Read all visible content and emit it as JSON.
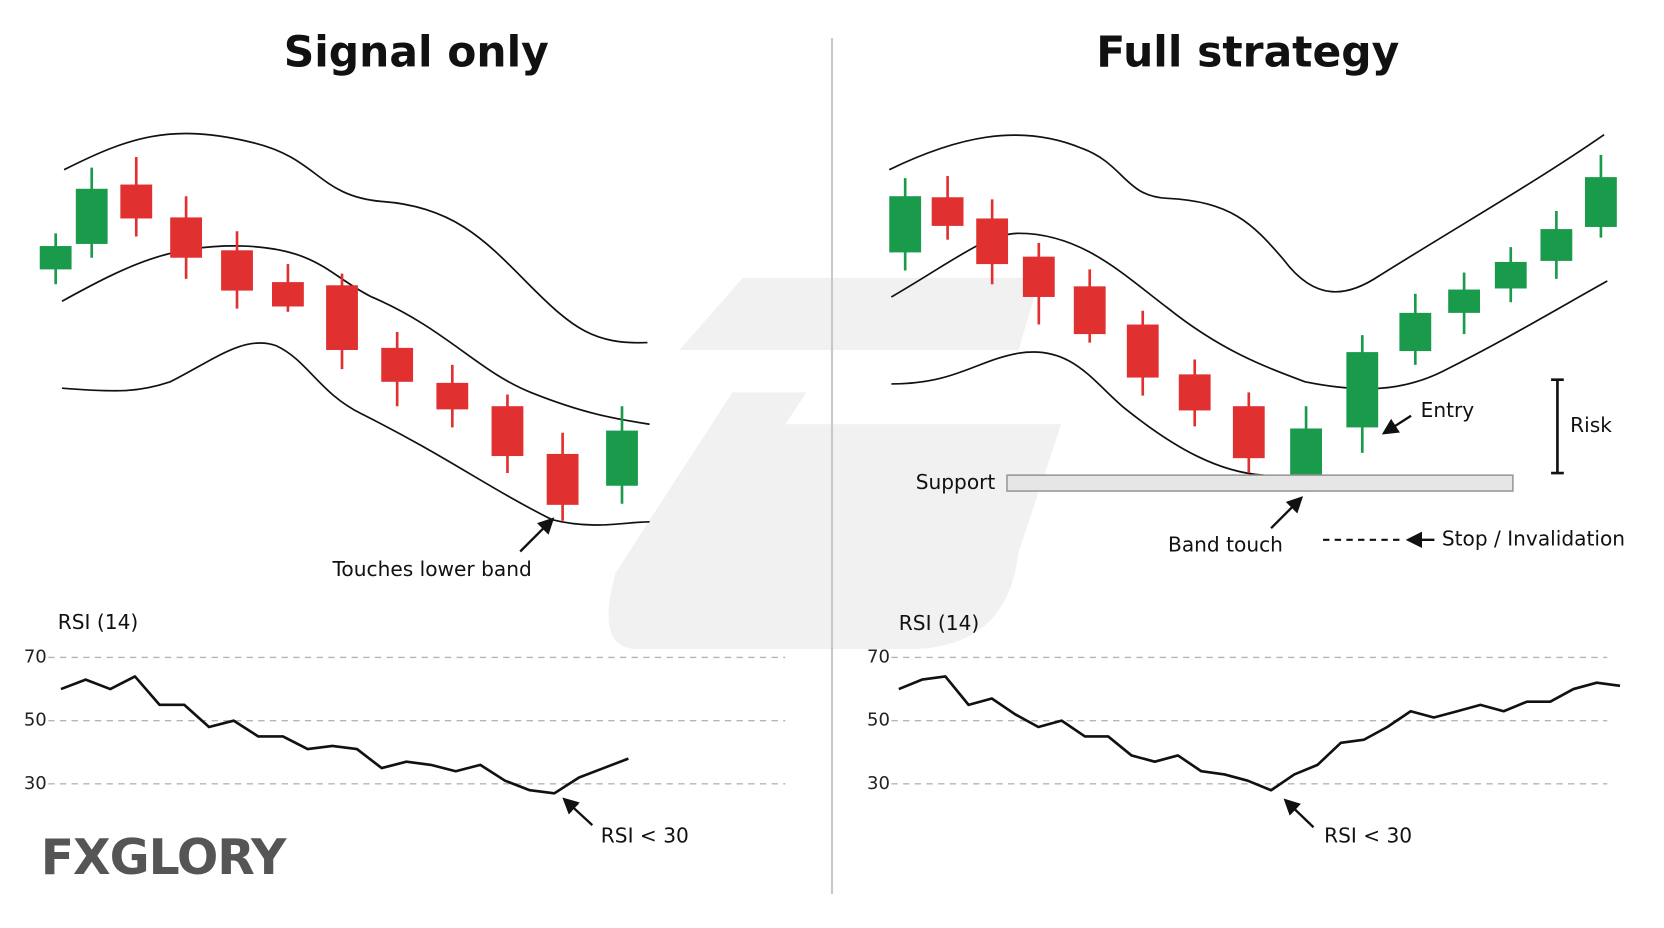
{
  "logo": "FXGLORY",
  "chart_data": [
    {
      "type": "line",
      "title": "Signal only",
      "axis_label": "RSI (14)",
      "categories": [
        null,
        null,
        null,
        null,
        null,
        null,
        null,
        null,
        null,
        null,
        null,
        null,
        null,
        null,
        null,
        null,
        null,
        null,
        null,
        null,
        null,
        null,
        null,
        null
      ],
      "values": [
        60,
        63,
        60,
        64,
        55,
        55,
        48,
        50,
        45,
        45,
        41,
        42,
        41,
        35,
        37,
        36,
        34,
        36,
        31,
        28,
        27,
        32,
        35,
        38
      ],
      "color": "#111111",
      "ylim": [
        25,
        75
      ],
      "yticks": [
        30,
        50,
        70
      ],
      "grid": true,
      "annotations": [
        "Touches lower band",
        "RSI < 30"
      ]
    },
    {
      "type": "line",
      "title": "Full strategy",
      "axis_label": "RSI (14)",
      "categories": [
        null,
        null,
        null,
        null,
        null,
        null,
        null,
        null,
        null,
        null,
        null,
        null,
        null,
        null,
        null,
        null,
        null,
        null,
        null,
        null,
        null,
        null,
        null,
        null,
        null,
        null,
        null,
        null,
        null,
        null,
        null,
        null
      ],
      "values": [
        60,
        63,
        64,
        55,
        57,
        52,
        48,
        50,
        45,
        45,
        39,
        37,
        39,
        34,
        33,
        31,
        28,
        33,
        36,
        43,
        44,
        48,
        53,
        51,
        53,
        55,
        53,
        56,
        56,
        60,
        62,
        61
      ],
      "color": "#111111",
      "ylim": [
        25,
        75
      ],
      "yticks": [
        30,
        50,
        70
      ],
      "grid": true,
      "annotations": [
        "Support",
        "Band touch",
        "Entry",
        "Risk",
        "Stop / Invalidation",
        "RSI < 30"
      ]
    }
  ]
}
